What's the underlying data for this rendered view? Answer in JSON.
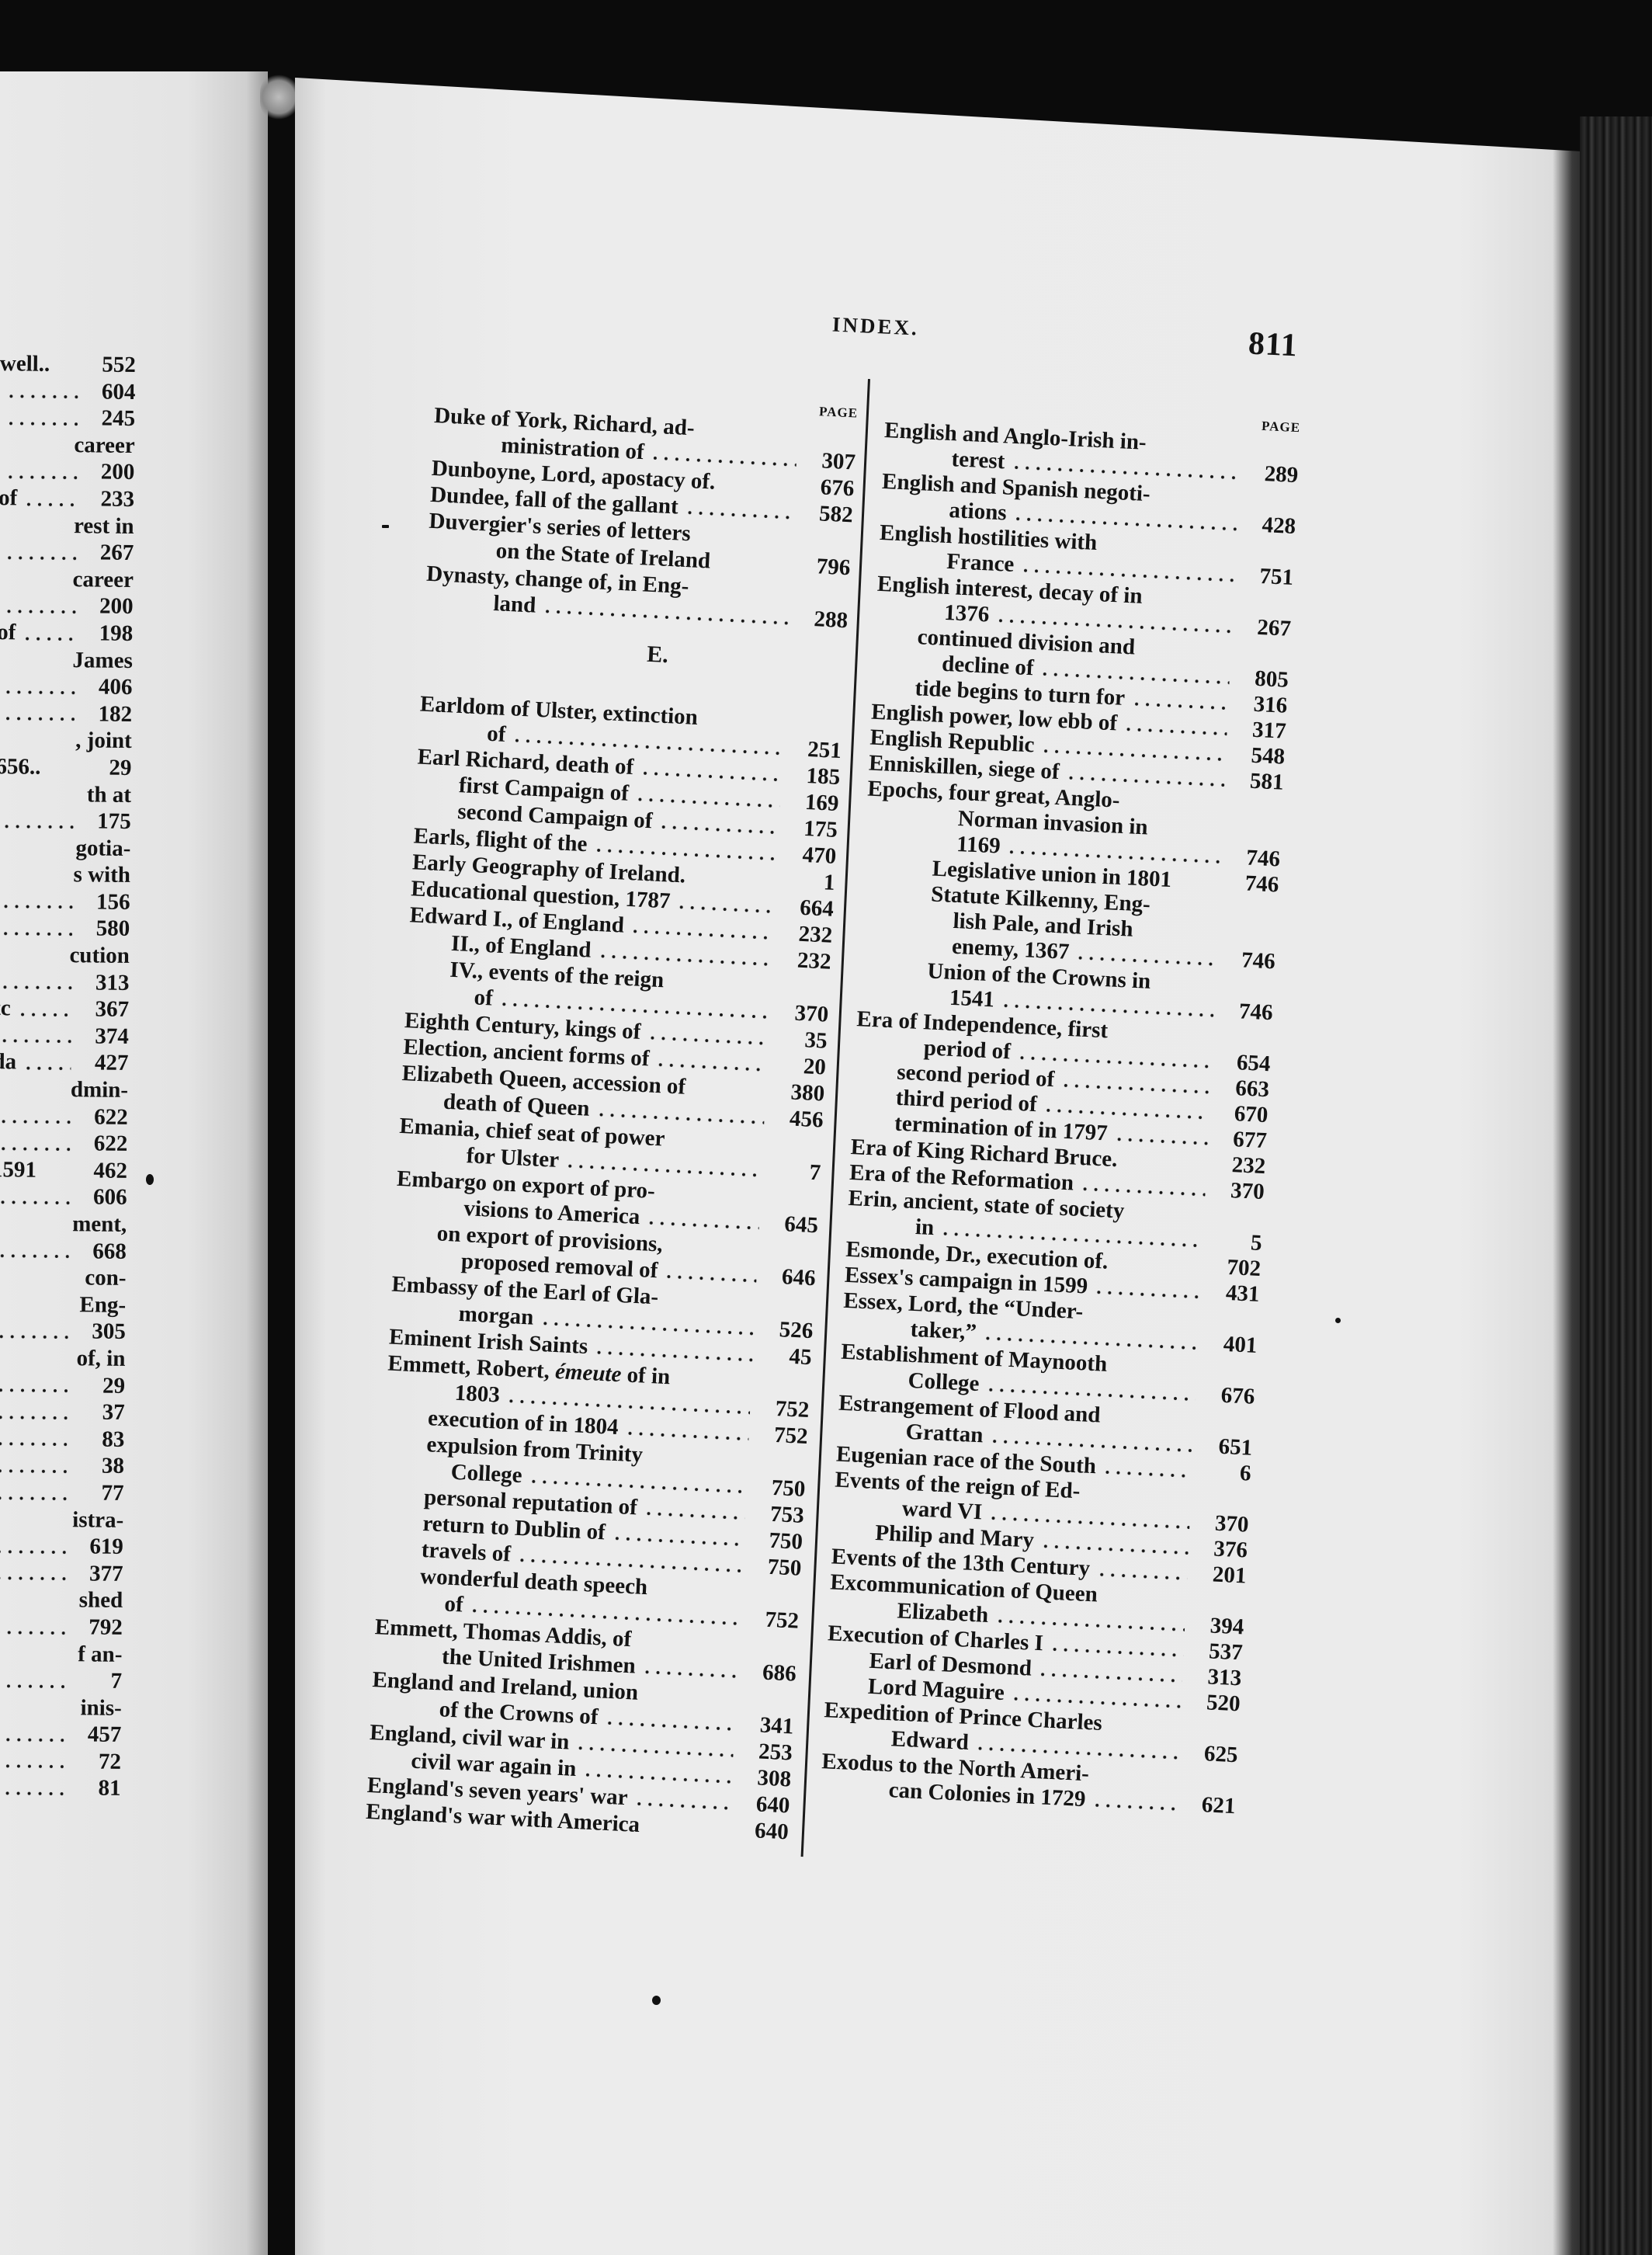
{
  "header": {
    "title": "INDEX.",
    "page_number": "811"
  },
  "page_column_label": "PAGE",
  "left_fragment": {
    "lines": [
      {
        "text": "well..",
        "page": "552"
      },
      {
        "text": "",
        "page": "604",
        "leader": true
      },
      {
        "text": "",
        "page": "245",
        "leader": true
      },
      {
        "text": "career"
      },
      {
        "text": "",
        "page": "200",
        "leader": true
      },
      {
        "text": "of",
        "page": "233",
        "leader": true
      },
      {
        "text": "rest in"
      },
      {
        "text": "",
        "page": "267",
        "leader": true
      },
      {
        "text": "career"
      },
      {
        "text": "",
        "page": "200",
        "leader": true
      },
      {
        "text": "of",
        "page": "198",
        "leader": true
      },
      {
        "text": "James"
      },
      {
        "text": "",
        "page": "406",
        "leader": true
      },
      {
        "text": "",
        "page": "182",
        "leader": true
      },
      {
        "text": ", joint"
      },
      {
        "text": "656..",
        "page": "29"
      },
      {
        "text": "th  at"
      },
      {
        "text": "",
        "page": "175",
        "leader": true
      },
      {
        "text": "gotia-"
      },
      {
        "text": "s with"
      },
      {
        "text": "",
        "page": "156",
        "leader": true
      },
      {
        "text": "",
        "page": "580",
        "leader": true
      },
      {
        "text": "cution"
      },
      {
        "text": "",
        "page": "313",
        "leader": true
      },
      {
        "text": "tc",
        "page": "367",
        "leader": true
      },
      {
        "text": "",
        "page": "374",
        "leader": true
      },
      {
        "text": "da",
        "page": "427",
        "leader": true
      },
      {
        "text": "dmin-"
      },
      {
        "text": "",
        "page": "622",
        "leader": true
      },
      {
        "text": "",
        "page": "622",
        "leader": true
      },
      {
        "text": "1591",
        "page": "462"
      },
      {
        "text": "",
        "page": "606",
        "leader": true
      },
      {
        "text": "ment,"
      },
      {
        "text": "",
        "page": "668",
        "leader": true
      },
      {
        "text": "con-"
      },
      {
        "text": "Eng-"
      },
      {
        "text": "",
        "page": "305",
        "leader": true
      },
      {
        "text": "of, in"
      },
      {
        "text": "",
        "page": "29",
        "leader": true
      },
      {
        "text": "",
        "page": "37",
        "leader": true
      },
      {
        "text": "",
        "page": "83",
        "leader": true
      },
      {
        "text": "",
        "page": "38",
        "leader": true
      },
      {
        "text": "",
        "page": "77",
        "leader": true
      },
      {
        "text": "istra-"
      },
      {
        "text": "",
        "page": "619",
        "leader": true
      },
      {
        "text": "",
        "page": "377",
        "leader": true
      },
      {
        "text": "shed"
      },
      {
        "text": "",
        "page": "792",
        "leader": true
      },
      {
        "text": "f an-"
      },
      {
        "text": "",
        "page": "7",
        "leader": true
      },
      {
        "text": "inis-"
      },
      {
        "text": "",
        "page": "457",
        "leader": true
      },
      {
        "text": "",
        "page": "72",
        "leader": true
      },
      {
        "text": "",
        "page": "81",
        "leader": true
      }
    ]
  },
  "middle_column": {
    "lines": [
      {
        "indent": 0,
        "text": "Duke of York, Richard, ad-"
      },
      {
        "indent": 2,
        "text": "ministration of",
        "page": "307",
        "leader": true
      },
      {
        "indent": 0,
        "text": "Dunboyne, Lord, apostacy of.",
        "page": "676"
      },
      {
        "indent": 0,
        "text": "Dundee, fall of the gallant",
        "page": "582",
        "leader": true
      },
      {
        "indent": 0,
        "text": "Duvergier's series of letters"
      },
      {
        "indent": 2,
        "text": "on the State of Ireland",
        "page": "796"
      },
      {
        "indent": 0,
        "text": "Dynasty, change of, in Eng-"
      },
      {
        "indent": 2,
        "text": "land",
        "page": "288",
        "leader": true
      },
      {
        "heading": "E."
      },
      {
        "indent": 0,
        "text": "Earldom of Ulster, extinction"
      },
      {
        "indent": 2,
        "text": "of",
        "page": "251",
        "leader": true
      },
      {
        "indent": 0,
        "text": "Earl Richard, death of",
        "page": "185",
        "leader": true
      },
      {
        "indent": 1,
        "text": "first Campaign of",
        "page": "169",
        "leader": true
      },
      {
        "indent": 1,
        "text": "second Campaign of",
        "page": "175",
        "leader": true
      },
      {
        "indent": 0,
        "text": "Earls, flight of the",
        "page": "470",
        "leader": true
      },
      {
        "indent": 0,
        "text": "Early Geography of Ireland.",
        "page": "1"
      },
      {
        "indent": 0,
        "text": "Educational question, 1787",
        "page": "664",
        "leader": true
      },
      {
        "indent": 0,
        "text": "Edward I., of England",
        "page": "232",
        "leader": true
      },
      {
        "indent": 1,
        "text": "II., of England",
        "page": "232",
        "leader": true
      },
      {
        "indent": 1,
        "text": "IV., events of the reign"
      },
      {
        "indent": 2,
        "text": "of",
        "page": "370",
        "leader": true
      },
      {
        "indent": 0,
        "text": "Eighth Century, kings of",
        "page": "35",
        "leader": true
      },
      {
        "indent": 0,
        "text": "Election, ancient forms of",
        "page": "20",
        "leader": true
      },
      {
        "indent": 0,
        "text": "Elizabeth Queen, accession of",
        "page": "380"
      },
      {
        "indent": 1,
        "text": "death of Queen",
        "page": "456",
        "leader": true
      },
      {
        "indent": 0,
        "text": "Emania, chief seat of power"
      },
      {
        "indent": 2,
        "text": "for Ulster",
        "page": "7",
        "leader": true
      },
      {
        "indent": 0,
        "text": "Embargo on export of pro-"
      },
      {
        "indent": 2,
        "text": "visions to America",
        "page": "645",
        "leader": true
      },
      {
        "indent": 1,
        "text": "on export of provisions,"
      },
      {
        "indent": 2,
        "text": "proposed removal of",
        "page": "646",
        "leader": true
      },
      {
        "indent": 0,
        "text": "Embassy of the Earl of Gla-"
      },
      {
        "indent": 2,
        "text": "morgan",
        "page": "526",
        "leader": true
      },
      {
        "indent": 0,
        "text": "Eminent Irish Saints",
        "page": "45",
        "leader": true
      },
      {
        "indent": 0,
        "text": "Emmett, Robert, ",
        "italic": "émeute",
        "text_after": " of in"
      },
      {
        "indent": 2,
        "text": "1803",
        "page": "752",
        "leader": true
      },
      {
        "indent": 1,
        "text": "execution of in 1804",
        "page": "752",
        "leader": true
      },
      {
        "indent": 1,
        "text": "expulsion from Trinity"
      },
      {
        "indent": 2,
        "text": "College",
        "page": "750",
        "leader": true
      },
      {
        "indent": 1,
        "text": "personal reputation of",
        "page": "753",
        "leader": true
      },
      {
        "indent": 1,
        "text": "return to Dublin of",
        "page": "750",
        "leader": true
      },
      {
        "indent": 1,
        "text": "travels of",
        "page": "750",
        "leader": true
      },
      {
        "indent": 1,
        "text": "wonderful death speech"
      },
      {
        "indent": 2,
        "text": "of",
        "page": "752",
        "leader": true
      },
      {
        "indent": 0,
        "text": "Emmett, Thomas Addis, of"
      },
      {
        "indent": 2,
        "text": "the United Irishmen",
        "page": "686",
        "leader": true
      },
      {
        "indent": 0,
        "text": "England and Ireland, union"
      },
      {
        "indent": 2,
        "text": "of the Crowns of",
        "page": "341",
        "leader": true
      },
      {
        "indent": 0,
        "text": "England, civil war in",
        "page": "253",
        "leader": true
      },
      {
        "indent": 1,
        "text": "civil war again in",
        "page": "308",
        "leader": true
      },
      {
        "indent": 0,
        "text": "England's seven years' war",
        "page": "640",
        "leader": true
      },
      {
        "indent": 0,
        "text": "England's war with America",
        "page": "640"
      }
    ]
  },
  "right_column": {
    "lines": [
      {
        "indent": 0,
        "text": "English and Anglo-Irish in-"
      },
      {
        "indent": 2,
        "text": "terest",
        "page": "289",
        "leader": true
      },
      {
        "indent": 0,
        "text": "English and Spanish negoti-"
      },
      {
        "indent": 2,
        "text": "ations",
        "page": "428",
        "leader": true
      },
      {
        "indent": 0,
        "text": "English    hostilities    with"
      },
      {
        "indent": 2,
        "text": "France",
        "page": "751",
        "leader": true
      },
      {
        "indent": 0,
        "text": "English interest, decay of in"
      },
      {
        "indent": 2,
        "text": "1376",
        "page": "267",
        "leader": true
      },
      {
        "indent": 1,
        "text": "continued division and"
      },
      {
        "indent": 2,
        "text": "decline of",
        "page": "805",
        "leader": true
      },
      {
        "indent": 1,
        "text": "tide begins to turn for",
        "page": "316",
        "leader": true
      },
      {
        "indent": 0,
        "text": "English power, low ebb of",
        "page": "317",
        "leader": true
      },
      {
        "indent": 0,
        "text": "English Republic",
        "page": "548",
        "leader": true
      },
      {
        "indent": 0,
        "text": "Enniskillen, siege of",
        "page": "581",
        "leader": true
      },
      {
        "indent": 0,
        "text": "Epochs, four great, Anglo-"
      },
      {
        "indent": 3,
        "text": "Norman invasion in"
      },
      {
        "indent": 3,
        "text": "1169",
        "page": "746",
        "leader": true
      },
      {
        "indent": 2,
        "text": "Legislative union in 1801",
        "page": "746"
      },
      {
        "indent": 2,
        "text": "Statute Kilkenny, Eng-"
      },
      {
        "indent": 3,
        "text": "lish Pale, and Irish"
      },
      {
        "indent": 3,
        "text": "enemy, 1367",
        "page": "746",
        "leader": true
      },
      {
        "indent": 2,
        "text": "Union of the Crowns in"
      },
      {
        "indent": 3,
        "text": "1541",
        "page": "746",
        "leader": true
      },
      {
        "indent": 0,
        "text": "Era of Independence, first"
      },
      {
        "indent": 2,
        "text": "period of",
        "page": "654",
        "leader": true
      },
      {
        "indent": 1,
        "text": "second period of",
        "page": "663",
        "leader": true
      },
      {
        "indent": 1,
        "text": "third period of",
        "page": "670",
        "leader": true
      },
      {
        "indent": 1,
        "text": "termination of in 1797",
        "page": "677",
        "leader": true
      },
      {
        "indent": 0,
        "text": "Era of King Richard Bruce.",
        "page": "232"
      },
      {
        "indent": 0,
        "text": "Era of the Reformation",
        "page": "370",
        "leader": true
      },
      {
        "indent": 0,
        "text": "Erin, ancient, state of society"
      },
      {
        "indent": 2,
        "text": "in",
        "page": "5",
        "leader": true
      },
      {
        "indent": 0,
        "text": "Esmonde, Dr., execution of.",
        "page": "702"
      },
      {
        "indent": 0,
        "text": "Essex's campaign in 1599",
        "page": "431",
        "leader": true
      },
      {
        "indent": 0,
        "text": "Essex, Lord, the “Under-"
      },
      {
        "indent": 2,
        "text": "taker,”",
        "page": "401",
        "leader": true
      },
      {
        "indent": 0,
        "text": "Establishment of Maynooth"
      },
      {
        "indent": 2,
        "text": "College",
        "page": "676",
        "leader": true
      },
      {
        "indent": 0,
        "text": "Estrangement of Flood and"
      },
      {
        "indent": 2,
        "text": "Grattan",
        "page": "651",
        "leader": true
      },
      {
        "indent": 0,
        "text": "Eugenian race of the South",
        "page": "6",
        "leader": true
      },
      {
        "indent": 0,
        "text": "Events of the reign of Ed-"
      },
      {
        "indent": 2,
        "text": "ward VI",
        "page": "370",
        "leader": true
      },
      {
        "indent": 1,
        "text": "Philip and Mary",
        "page": "376",
        "leader": true
      },
      {
        "indent": 0,
        "text": "Events of the 13th Century",
        "page": "201",
        "leader": true
      },
      {
        "indent": 0,
        "text": "Excommunication of Queen"
      },
      {
        "indent": 2,
        "text": "Elizabeth",
        "page": "394",
        "leader": true
      },
      {
        "indent": 0,
        "text": "Execution of Charles I",
        "page": "537",
        "leader": true
      },
      {
        "indent": 1,
        "text": "Earl of Desmond",
        "page": "313",
        "leader": true
      },
      {
        "indent": 1,
        "text": "Lord Maguire",
        "page": "520",
        "leader": true
      },
      {
        "indent": 0,
        "text": "Expedition of Prince Charles"
      },
      {
        "indent": 2,
        "text": "Edward",
        "page": "625",
        "leader": true
      },
      {
        "indent": 0,
        "text": "Exodus to the North Ameri-"
      },
      {
        "indent": 2,
        "text": "can Colonies in 1729",
        "page": "621",
        "leader": true
      }
    ]
  }
}
